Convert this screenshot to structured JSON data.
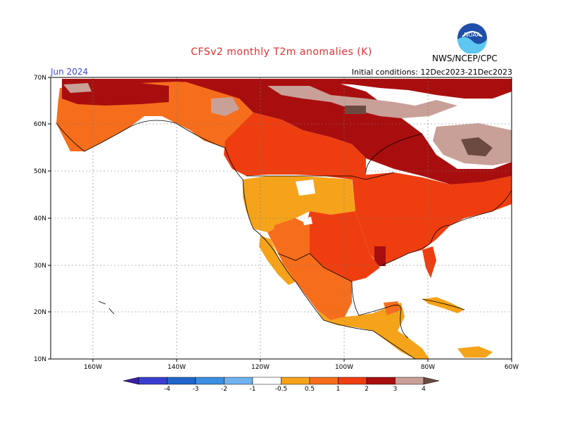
{
  "header": {
    "title": "CFSv2 monthly T2m anomalies (K)",
    "month": "Jun 2024",
    "initial_conditions": "Initial conditions: 12Dec2023-21Dec2023",
    "org": "NWS/NCEP/CPC",
    "logo_text": "NOAA"
  },
  "axes": {
    "lat_labels": [
      "70N",
      "60N",
      "50N",
      "40N",
      "30N",
      "20N",
      "10N"
    ],
    "lon_labels": [
      "160W",
      "140W",
      "120W",
      "100W",
      "80W",
      "60W"
    ]
  },
  "colorbar": {
    "labels": [
      "-4",
      "-3",
      "-2",
      "-1",
      "-0.5",
      "0.5",
      "1",
      "2",
      "3",
      "4"
    ],
    "colors": [
      "#3a1fa8",
      "#3a3ed0",
      "#1f66c8",
      "#3c8ee0",
      "#6fb2ee",
      "#ffffff",
      "#f5a31a",
      "#f66e1c",
      "#ee3e10",
      "#a90e0e",
      "#c9a097",
      "#6b4a42"
    ]
  },
  "chart_data": {
    "type": "heatmap",
    "variable": "T2m anomaly (K)",
    "lon_range": [
      -170,
      -60
    ],
    "lat_range": [
      10,
      70
    ],
    "bins": [
      -4,
      -3,
      -2,
      -1,
      -0.5,
      0.5,
      1,
      2,
      3,
      4
    ]
  }
}
